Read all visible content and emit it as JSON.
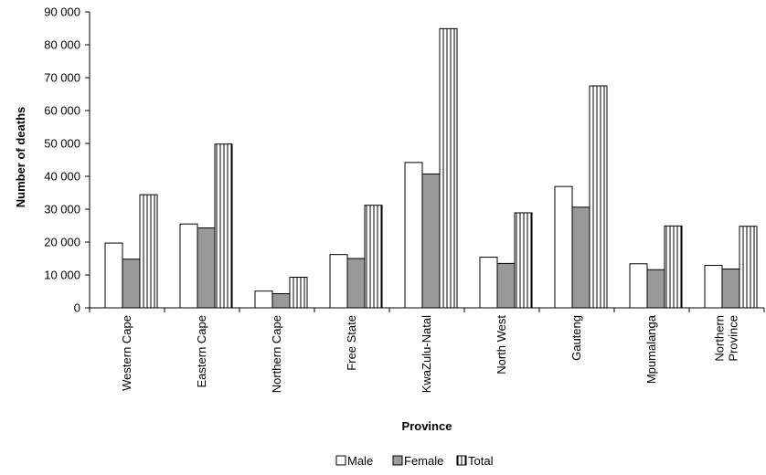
{
  "chart_data": {
    "type": "bar",
    "title": "",
    "xlabel": "Province",
    "ylabel": "Number of deaths",
    "ylim": [
      0,
      90000
    ],
    "yticks": [
      0,
      10000,
      20000,
      30000,
      40000,
      50000,
      60000,
      70000,
      80000,
      90000
    ],
    "ytick_labels": [
      "0",
      "10 000",
      "20 000",
      "30 000",
      "40 000",
      "50 000",
      "60 000",
      "70 000",
      "80 000",
      "90 000"
    ],
    "grid": false,
    "legend_position": "bottom",
    "categories": [
      [
        "Western Cape"
      ],
      [
        "Eastern Cape"
      ],
      [
        "Northern Cape"
      ],
      [
        "Free State"
      ],
      [
        "KwaZulu-Natal"
      ],
      [
        "North West"
      ],
      [
        "Gauteng"
      ],
      [
        "Mpumalanga"
      ],
      [
        "Northern",
        "Province"
      ]
    ],
    "series": [
      {
        "name": "Male",
        "fill": "#ffffff",
        "pattern": "solid",
        "values": [
          19700,
          25500,
          5100,
          16200,
          44200,
          15400,
          36900,
          13400,
          12900
        ]
      },
      {
        "name": "Female",
        "fill": "#999999",
        "pattern": "solid",
        "values": [
          14800,
          24300,
          4300,
          15000,
          40700,
          13500,
          30600,
          11600,
          11800
        ]
      },
      {
        "name": "Total",
        "fill": "#ffffff",
        "pattern": "vertical-lines",
        "values": [
          34400,
          49800,
          9300,
          31200,
          84900,
          28900,
          67500,
          24900,
          24800
        ]
      }
    ]
  }
}
